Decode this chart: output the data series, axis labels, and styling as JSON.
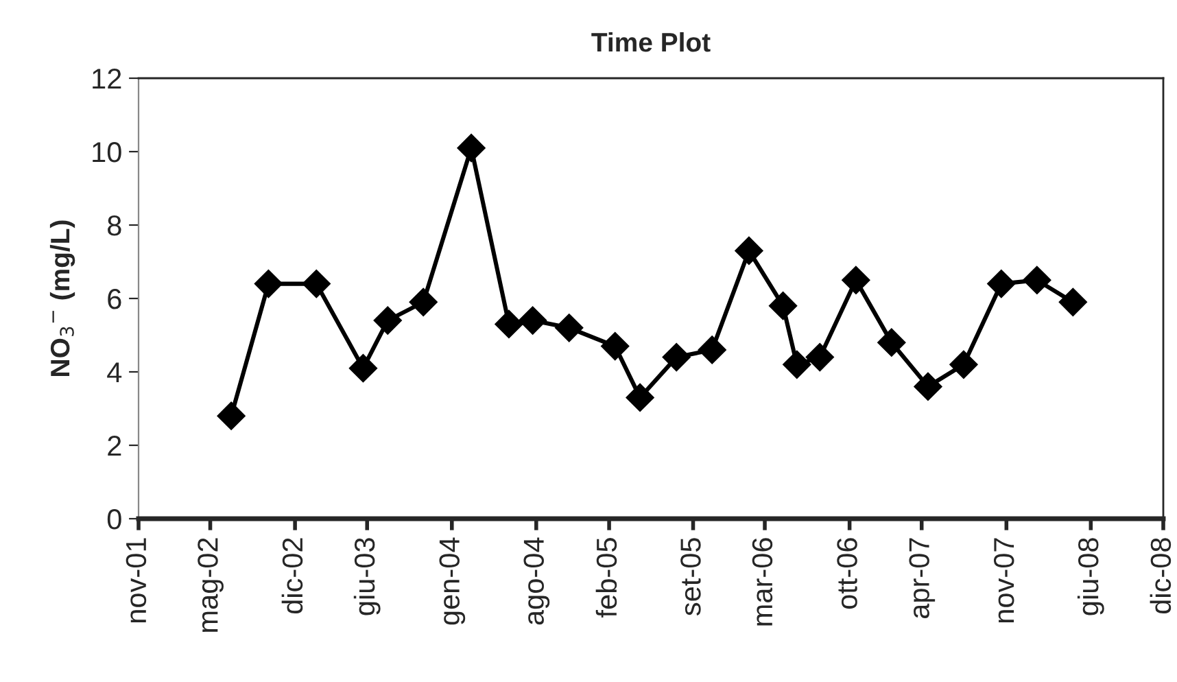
{
  "chart_data": {
    "type": "line",
    "title": "Time Plot",
    "ylabel": "NO$_{3}$$^{−}$ (mg/L)",
    "series": [
      {
        "color": "#000000",
        "x": [
          "2002-07-07",
          "2002-10-09",
          "2003-02-07",
          "2003-06-05",
          "2003-08-06",
          "2003-11-04",
          "2004-03-04",
          "2004-06-07",
          "2004-08-06",
          "2004-11-06",
          "2005-03-02",
          "2005-05-04",
          "2005-08-04",
          "2005-11-02",
          "2006-02-03",
          "2006-04-30",
          "2006-06-04",
          "2006-08-01",
          "2006-10-31",
          "2007-01-29",
          "2007-05-01",
          "2007-07-30",
          "2007-11-02",
          "2008-01-31",
          "2008-05-01"
        ],
        "values": [
          2.8,
          6.4,
          6.4,
          4.1,
          5.4,
          5.9,
          10.1,
          5.3,
          5.4,
          5.2,
          4.7,
          3.3,
          4.4,
          4.6,
          7.3,
          5.8,
          4.2,
          4.4,
          6.5,
          4.8,
          3.6,
          4.2,
          6.4,
          6.5,
          5.9
        ]
      }
    ],
    "xlim": [
      "2001-11-15",
      "2008-12-15"
    ],
    "xticks": [
      {
        "value": "2001-11-15",
        "label": "nov-01"
      },
      {
        "value": "2002-05-15",
        "label": "mag-02"
      },
      {
        "value": "2002-12-15",
        "label": "dic-02"
      },
      {
        "value": "2003-06-15",
        "label": "giu-03"
      },
      {
        "value": "2004-01-15",
        "label": "gen-04"
      },
      {
        "value": "2004-08-15",
        "label": "ago-04"
      },
      {
        "value": "2005-02-15",
        "label": "feb-05"
      },
      {
        "value": "2005-09-15",
        "label": "set-05"
      },
      {
        "value": "2006-03-15",
        "label": "mar-06"
      },
      {
        "value": "2006-10-15",
        "label": "ott-06"
      },
      {
        "value": "2007-04-15",
        "label": "apr-07"
      },
      {
        "value": "2007-11-15",
        "label": "nov-07"
      },
      {
        "value": "2008-06-15",
        "label": "giu-08"
      },
      {
        "value": "2008-12-15",
        "label": "dic-08"
      }
    ],
    "ylim": [
      0,
      12
    ],
    "yticks": [
      0,
      2,
      4,
      6,
      8,
      10,
      12
    ],
    "marker": "diamond",
    "line_style": "solid",
    "grid": false,
    "legend": false
  }
}
